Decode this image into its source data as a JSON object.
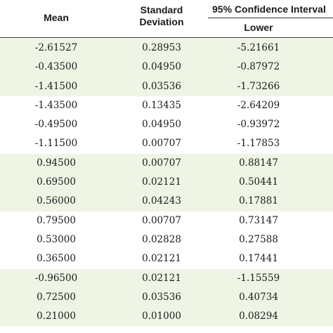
{
  "header": {
    "mean": "Mean",
    "sd_line1": "Standard",
    "sd_line2": "Deviation",
    "ci": "95% Confidence Interval",
    "lower": "Lower"
  },
  "row_group_shading": [
    "#eef5e5",
    "#ffffff"
  ],
  "rows": [
    {
      "mean": "-2.61527",
      "sd": "0.28953",
      "lower": "-5.21661",
      "shade": true
    },
    {
      "mean": "-0.43500",
      "sd": "0.04950",
      "lower": "-0.87972",
      "shade": true
    },
    {
      "mean": "-1.41500",
      "sd": "0.03536",
      "lower": "-1.73266",
      "shade": true
    },
    {
      "mean": "-1.43500",
      "sd": "0.13435",
      "lower": "-2.64209",
      "shade": false
    },
    {
      "mean": "-0.49500",
      "sd": "0.04950",
      "lower": "-0.93972",
      "shade": false
    },
    {
      "mean": "-1.11500",
      "sd": "0.00707",
      "lower": "-1.17853",
      "shade": false
    },
    {
      "mean": "0.94500",
      "sd": "0.00707",
      "lower": "0.88147",
      "shade": true
    },
    {
      "mean": "0.69500",
      "sd": "0.02121",
      "lower": "0.50441",
      "shade": true
    },
    {
      "mean": "0.56000",
      "sd": "0.04243",
      "lower": "0.17881",
      "shade": true
    },
    {
      "mean": "0.79500",
      "sd": "0.00707",
      "lower": "0.73147",
      "shade": false
    },
    {
      "mean": "0.53000",
      "sd": "0.02828",
      "lower": "0.27588",
      "shade": false
    },
    {
      "mean": "0.36500",
      "sd": "0.02121",
      "lower": "0.17441",
      "shade": false
    },
    {
      "mean": "-0.96500",
      "sd": "0.02121",
      "lower": "-1.15559",
      "shade": true
    },
    {
      "mean": "0.72500",
      "sd": "0.03536",
      "lower": "0.40734",
      "shade": true
    },
    {
      "mean": "0.21000",
      "sd": "0.01000",
      "lower": "0.08294",
      "shade": true
    }
  ]
}
